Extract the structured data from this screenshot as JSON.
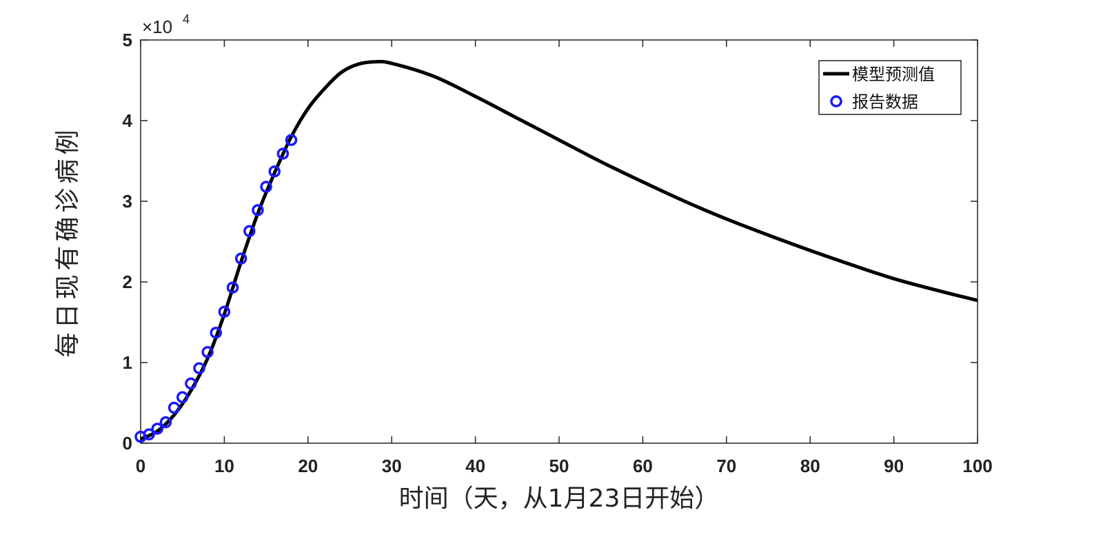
{
  "chart_data": {
    "type": "line",
    "xlabel": "时间（天，从1月23日开始）",
    "ylabel": "每日现有确诊病例",
    "xlim": [
      0,
      100
    ],
    "ylim": [
      0,
      50000
    ],
    "x_ticks": [
      "0",
      "10",
      "20",
      "30",
      "40",
      "50",
      "60",
      "70",
      "80",
      "90",
      "100"
    ],
    "y_ticks": [
      "0",
      "1",
      "2",
      "3",
      "4",
      "5"
    ],
    "y_exponent": {
      "base": "×10",
      "power": "4"
    },
    "grid": false,
    "legend_position": "top-right",
    "series": [
      {
        "name": "模型预测值",
        "style": "line",
        "color": "#000000",
        "x": [
          0,
          2,
          4,
          6,
          8,
          10,
          12,
          14,
          16,
          18,
          20,
          22,
          24,
          26,
          28,
          30,
          35,
          40,
          45,
          50,
          55,
          60,
          65,
          70,
          75,
          80,
          85,
          90,
          95,
          100
        ],
        "y": [
          500,
          1500,
          3500,
          6500,
          10500,
          16000,
          22500,
          28500,
          33500,
          38000,
          41500,
          44000,
          46000,
          47000,
          47300,
          47100,
          45500,
          43000,
          40300,
          37600,
          34900,
          32400,
          30000,
          27800,
          25800,
          23900,
          22100,
          20400,
          19000,
          17700
        ]
      },
      {
        "name": "报告数据",
        "style": "markers",
        "marker": "circle",
        "color": "#1a1aff",
        "x": [
          0,
          1,
          2,
          3,
          4,
          5,
          6,
          7,
          8,
          9,
          10,
          11,
          12,
          13,
          14,
          15,
          16,
          17,
          18
        ],
        "y": [
          800,
          1100,
          1800,
          2600,
          4400,
          5700,
          7400,
          9300,
          11300,
          13700,
          16300,
          19300,
          22900,
          26300,
          28900,
          31800,
          33700,
          35900,
          37600
        ]
      }
    ]
  }
}
